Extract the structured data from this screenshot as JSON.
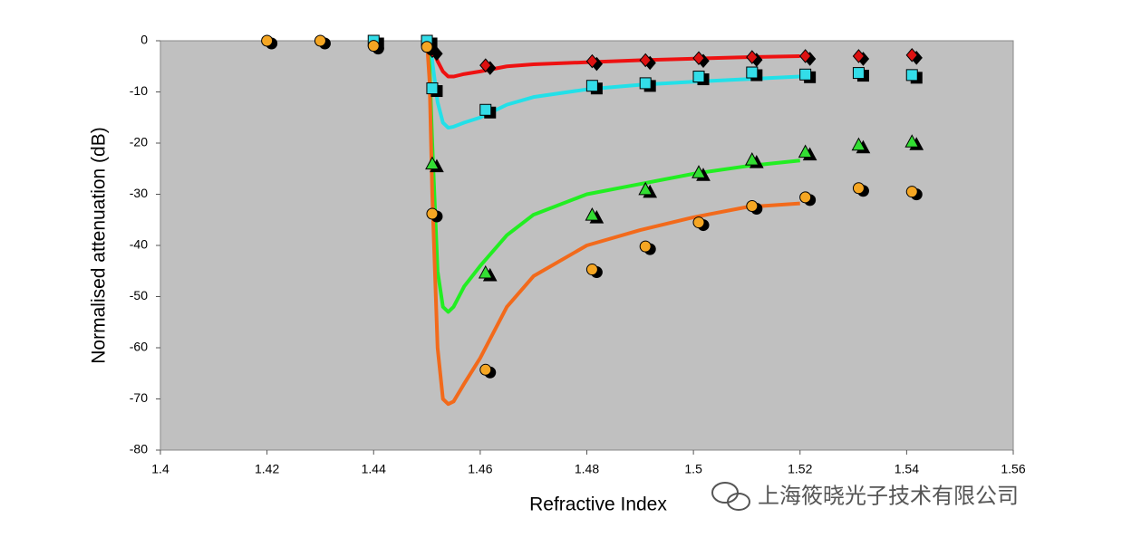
{
  "chart_data": {
    "type": "scatter",
    "x_label": "Refractive Index",
    "y_label": "Normalised attenuation (dB)",
    "watermark": "上海筱晓光子技术有限公司",
    "xlim": [
      1.4,
      1.56
    ],
    "xticks": [
      1.4,
      1.42,
      1.44,
      1.46,
      1.48,
      1.5,
      1.52,
      1.54,
      1.56
    ],
    "ylim": [
      -80,
      0
    ],
    "yticks": [
      0,
      -10,
      -20,
      -30,
      -40,
      -50,
      -60,
      -70,
      -80
    ],
    "plot_background": "#c0c0c0",
    "series": [
      {
        "mode": "line",
        "color": "#ee1111",
        "x": [
          1.45,
          1.4505,
          1.451,
          1.452,
          1.453,
          1.454,
          1.455,
          1.457,
          1.46,
          1.465,
          1.47,
          1.48,
          1.49,
          1.5,
          1.51,
          1.52
        ],
        "values": [
          0,
          0,
          -1.5,
          -4,
          -6,
          -7,
          -7,
          -6.5,
          -6,
          -5,
          -4.6,
          -4.2,
          -3.8,
          -3.5,
          -3.2,
          -3
        ]
      },
      {
        "mode": "line",
        "color": "#22e0e8",
        "x": [
          1.45,
          1.4505,
          1.451,
          1.452,
          1.453,
          1.454,
          1.455,
          1.457,
          1.46,
          1.465,
          1.47,
          1.48,
          1.49,
          1.5,
          1.51,
          1.52
        ],
        "values": [
          0,
          0,
          -4,
          -12,
          -16,
          -17,
          -16.8,
          -16,
          -15,
          -12.5,
          -11,
          -9.5,
          -8.6,
          -8,
          -7.5,
          -7
        ]
      },
      {
        "mode": "line",
        "color": "#22ee22",
        "x": [
          1.45,
          1.4505,
          1.451,
          1.452,
          1.453,
          1.454,
          1.455,
          1.457,
          1.46,
          1.465,
          1.47,
          1.48,
          1.49,
          1.5,
          1.51,
          1.52
        ],
        "values": [
          0,
          -5,
          -20,
          -45,
          -52,
          -53,
          -52,
          -48,
          -44,
          -38,
          -34,
          -30,
          -28,
          -26,
          -24.5,
          -23.4
        ]
      },
      {
        "mode": "line",
        "color": "#f26a1b",
        "x": [
          1.45,
          1.4505,
          1.451,
          1.452,
          1.453,
          1.454,
          1.455,
          1.457,
          1.46,
          1.465,
          1.47,
          1.48,
          1.49,
          1.5,
          1.51,
          1.52
        ],
        "values": [
          0,
          -8,
          -30,
          -60,
          -70,
          -71,
          -70.5,
          -67,
          -62,
          -52,
          -46,
          -40,
          -37,
          -34.5,
          -32.5,
          -31.8
        ]
      },
      {
        "mode": "markers",
        "marker": "diamond",
        "color": "#dd1111",
        "x": [
          1.451,
          1.461,
          1.481,
          1.491,
          1.501,
          1.511,
          1.521,
          1.531,
          1.541
        ],
        "values": [
          -2,
          -4.8,
          -4,
          -3.8,
          -3.4,
          -3.2,
          -3,
          -3,
          -2.8
        ]
      },
      {
        "mode": "markers",
        "marker": "square",
        "color": "#33dde8",
        "x": [
          1.44,
          1.45,
          1.451,
          1.461,
          1.481,
          1.491,
          1.501,
          1.511,
          1.521,
          1.531,
          1.541
        ],
        "values": [
          0,
          0,
          -9.3,
          -13.5,
          -8.8,
          -8.3,
          -7,
          -6.2,
          -6.6,
          -6.3,
          -6.7
        ]
      },
      {
        "mode": "markers",
        "marker": "triangle",
        "color": "#33dd33",
        "x": [
          1.451,
          1.461,
          1.481,
          1.491,
          1.501,
          1.511,
          1.521,
          1.531,
          1.541
        ],
        "values": [
          -24,
          -45.3,
          -34,
          -29,
          -25.7,
          -23.2,
          -21.7,
          -20.3,
          -19.7
        ]
      },
      {
        "mode": "markers",
        "marker": "circle",
        "color": "#f5a623",
        "x": [
          1.42,
          1.43,
          1.44,
          1.45,
          1.451,
          1.461,
          1.481,
          1.491,
          1.501,
          1.511,
          1.521,
          1.531,
          1.541
        ],
        "values": [
          0,
          0,
          -1,
          -1.2,
          -33.8,
          -64.3,
          -44.7,
          -40.2,
          -35.5,
          -32.3,
          -30.6,
          -28.8,
          -29.5
        ]
      }
    ]
  }
}
